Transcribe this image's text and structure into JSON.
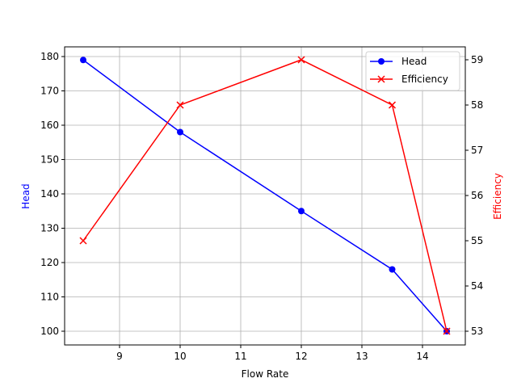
{
  "chart_data": {
    "type": "line",
    "title": "",
    "xlabel": "Flow Rate",
    "ylabel": "Head",
    "y2label": "Efficiency",
    "x": [
      8.4,
      10,
      12,
      13.5,
      14.4
    ],
    "series": [
      {
        "name": "Head",
        "axis": "left",
        "color": "#0000ff",
        "marker": "circle",
        "values": [
          179,
          158,
          135,
          118,
          100
        ]
      },
      {
        "name": "Efficiency",
        "axis": "right",
        "color": "#ff0000",
        "marker": "x",
        "values": [
          55,
          58,
          59,
          58,
          53
        ]
      }
    ],
    "xticks": [
      9,
      10,
      11,
      12,
      13,
      14
    ],
    "yticks": [
      100,
      110,
      120,
      130,
      140,
      150,
      160,
      170,
      180
    ],
    "y2ticks": [
      53,
      54,
      55,
      56,
      57,
      58,
      59
    ],
    "xlim": [
      8.1,
      14.7
    ],
    "ylim": [
      96.1,
      183.4
    ],
    "y2lim": [
      52.76,
      59.3
    ],
    "grid": true,
    "legend_position": "upper right"
  }
}
